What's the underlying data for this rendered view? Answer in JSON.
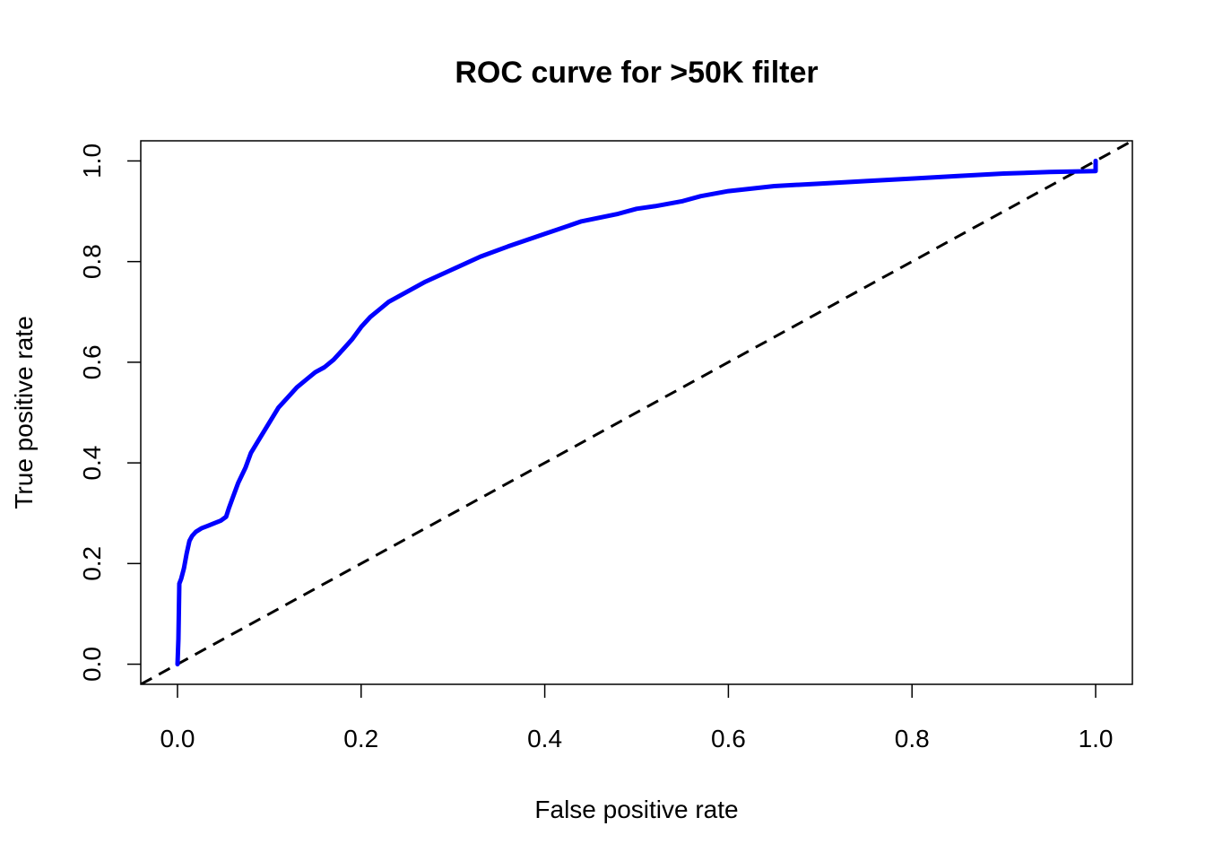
{
  "chart_data": {
    "type": "line",
    "title": "ROC curve for >50K filter",
    "xlabel": "False positive rate",
    "ylabel": "True positive rate",
    "xlim": [
      -0.04,
      1.04
    ],
    "ylim": [
      -0.04,
      1.04
    ],
    "x_ticks": [
      0.0,
      0.2,
      0.4,
      0.6,
      0.8,
      1.0
    ],
    "y_ticks": [
      0.0,
      0.2,
      0.4,
      0.6,
      0.8,
      1.0
    ],
    "x_tick_labels": [
      "0.0",
      "0.2",
      "0.4",
      "0.6",
      "0.8",
      "1.0"
    ],
    "y_tick_labels": [
      "0.0",
      "0.2",
      "0.4",
      "0.6",
      "0.8",
      "1.0"
    ],
    "grid": false,
    "series": [
      {
        "style": "solid",
        "color": "#0000ff",
        "x": [
          0.0,
          0.001,
          0.002,
          0.004,
          0.007,
          0.01,
          0.013,
          0.016,
          0.02,
          0.026,
          0.033,
          0.04,
          0.047,
          0.053,
          0.056,
          0.06,
          0.066,
          0.074,
          0.08,
          0.09,
          0.1,
          0.11,
          0.12,
          0.13,
          0.14,
          0.15,
          0.16,
          0.17,
          0.18,
          0.19,
          0.2,
          0.21,
          0.22,
          0.23,
          0.25,
          0.27,
          0.3,
          0.33,
          0.36,
          0.4,
          0.44,
          0.48,
          0.5,
          0.52,
          0.55,
          0.57,
          0.6,
          0.65,
          0.7,
          0.75,
          0.8,
          0.85,
          0.9,
          0.95,
          1.0,
          1.0,
          1.0
        ],
        "y": [
          0.0,
          0.05,
          0.16,
          0.17,
          0.19,
          0.22,
          0.245,
          0.255,
          0.263,
          0.27,
          0.275,
          0.28,
          0.285,
          0.293,
          0.31,
          0.33,
          0.36,
          0.39,
          0.42,
          0.45,
          0.48,
          0.51,
          0.53,
          0.55,
          0.565,
          0.58,
          0.59,
          0.605,
          0.625,
          0.645,
          0.67,
          0.69,
          0.705,
          0.72,
          0.74,
          0.76,
          0.785,
          0.81,
          0.83,
          0.855,
          0.88,
          0.895,
          0.905,
          0.91,
          0.92,
          0.93,
          0.94,
          0.95,
          0.955,
          0.96,
          0.965,
          0.97,
          0.975,
          0.978,
          0.98,
          0.98,
          1.0
        ]
      },
      {
        "style": "dashed",
        "color": "#000000",
        "x": [
          -0.04,
          1.04
        ],
        "y": [
          -0.04,
          1.04
        ]
      }
    ]
  }
}
